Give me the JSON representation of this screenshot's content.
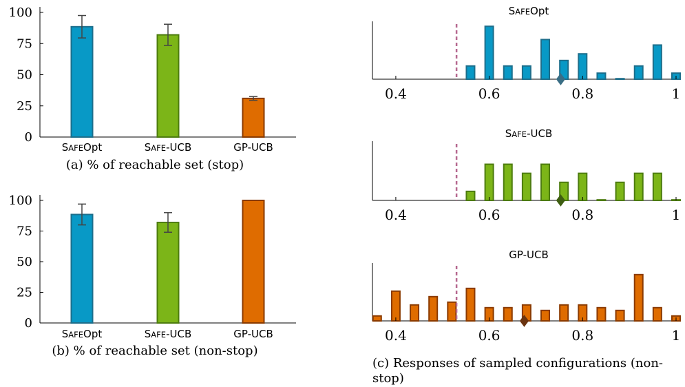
{
  "colors": {
    "safeopt_fill": "#0899c6",
    "safeopt_stroke": "#1d6e8b",
    "safeucb_fill": "#7cb518",
    "safeucb_stroke": "#4d7c0f",
    "gpucb_fill": "#df6c00",
    "gpucb_stroke": "#8a3a00",
    "errorbar": "#444444",
    "threshold": "#b5678f",
    "axis": "#000000"
  },
  "chart_data": [
    {
      "type": "bar",
      "panel": "a",
      "caption": "(a) % of reachable set (stop)",
      "categories": [
        "SafeOpt",
        "Safe-UCB",
        "GP-UCB"
      ],
      "values": [
        88.5,
        82,
        31
      ],
      "errors": [
        9,
        8.5,
        1.5
      ],
      "ylim": [
        0,
        100
      ],
      "yticks": [
        0,
        25,
        50,
        75,
        100
      ],
      "ytick_labels": [
        "0",
        "25",
        "50",
        "75",
        "100"
      ]
    },
    {
      "type": "bar",
      "panel": "b",
      "caption": "(b) % of reachable set (non-stop)",
      "categories": [
        "SafeOpt",
        "Safe-UCB",
        "GP-UCB"
      ],
      "values": [
        88.5,
        82,
        100
      ],
      "errors": [
        8.5,
        8,
        0
      ],
      "ylim": [
        0,
        100
      ],
      "yticks": [
        0,
        25,
        50,
        75,
        100
      ],
      "ytick_labels": [
        "0",
        "25",
        "50",
        "75",
        "100"
      ]
    },
    {
      "type": "bar",
      "panel": "c",
      "caption": "(c) Responses of sampled configurations (non-stop)",
      "xlim": [
        0.35,
        1.0
      ],
      "xticks": [
        0.4,
        0.6,
        0.8,
        1.0
      ],
      "xtick_labels": [
        "0.4",
        "0.6",
        "0.8",
        "1"
      ],
      "threshold": 0.53,
      "subplots": [
        {
          "title": "SafeOpt",
          "x": [
            0.56,
            0.6,
            0.64,
            0.68,
            0.72,
            0.76,
            0.8,
            0.84,
            0.88,
            0.92,
            0.96,
            1.0
          ],
          "values": [
            0.24,
            0.96,
            0.24,
            0.24,
            0.72,
            0.34,
            0.46,
            0.11,
            0.01,
            0.24,
            0.62,
            0.11
          ],
          "marker_x": 0.753
        },
        {
          "title": "Safe-UCB",
          "x": [
            0.56,
            0.6,
            0.64,
            0.68,
            0.72,
            0.76,
            0.8,
            0.84,
            0.88,
            0.92,
            0.96,
            1.0
          ],
          "values": [
            0.16,
            0.64,
            0.64,
            0.48,
            0.64,
            0.32,
            0.48,
            0.01,
            0.32,
            0.48,
            0.48,
            0.01
          ],
          "marker_x": 0.753
        },
        {
          "title": "GP-UCB",
          "x": [
            0.36,
            0.4,
            0.44,
            0.48,
            0.52,
            0.56,
            0.6,
            0.64,
            0.68,
            0.72,
            0.76,
            0.8,
            0.84,
            0.88,
            0.92,
            0.96,
            1.0
          ],
          "values": [
            0.09,
            0.54,
            0.29,
            0.44,
            0.34,
            0.59,
            0.24,
            0.24,
            0.29,
            0.19,
            0.29,
            0.29,
            0.24,
            0.19,
            0.84,
            0.24,
            0.09
          ],
          "marker_x": 0.675
        }
      ]
    }
  ]
}
